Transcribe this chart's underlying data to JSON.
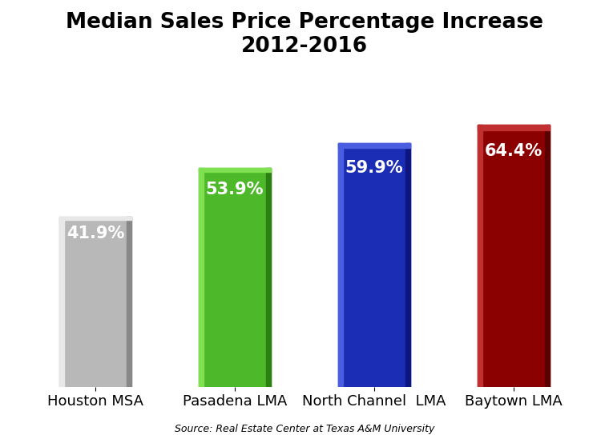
{
  "title_line1": "Median Sales Price Percentage Increase",
  "title_line2": "2012-2016",
  "categories": [
    "Houston MSA",
    "Pasadena LMA",
    "North Channel  LMA",
    "Baytown LMA"
  ],
  "values": [
    41.9,
    53.9,
    59.9,
    64.4
  ],
  "labels": [
    "41.9%",
    "53.9%",
    "59.9%",
    "64.4%"
  ],
  "bar_colors": [
    "#b8b8b8",
    "#4db82a",
    "#1c2db5",
    "#8b0000"
  ],
  "bar_light_colors": [
    "#e8e8e8",
    "#7fe050",
    "#4a5de0",
    "#c03030"
  ],
  "bar_dark_colors": [
    "#888888",
    "#2a8010",
    "#0d1680",
    "#5a0000"
  ],
  "label_color": "white",
  "background_color": "#ffffff",
  "source_text": "Source: Real Estate Center at Texas A&M University",
  "ylim": [
    0,
    78
  ],
  "bar_width": 0.52,
  "label_fontsize": 15,
  "title_fontsize": 19,
  "xtick_fontsize": 13,
  "source_fontsize": 9
}
